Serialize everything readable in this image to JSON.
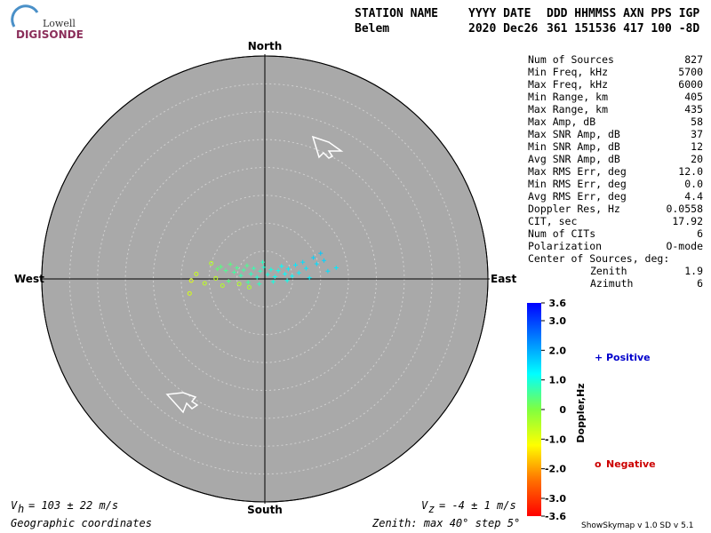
{
  "header": {
    "logo_top": "Lowell",
    "logo_bottom": "DIGISONDE",
    "labels": [
      "STATION NAME",
      "YYYY DATE",
      "DDD HHMMSS AXN PPS IGP"
    ],
    "values": [
      "Belem",
      "2020 Dec26",
      "361 151536 417 100 -8D"
    ]
  },
  "stats": {
    "rows": [
      [
        "Num of Sources",
        "827"
      ],
      [
        "Min Freq, kHz",
        "5700"
      ],
      [
        "Max Freq, kHz",
        "6000"
      ],
      [
        "Min Range, km",
        "405"
      ],
      [
        "Max Range, km",
        "435"
      ],
      [
        "Max Amp, dB",
        "58"
      ],
      [
        "Max SNR Amp, dB",
        "37"
      ],
      [
        "Min SNR Amp, dB",
        "12"
      ],
      [
        "Avg SNR Amp, dB",
        "20"
      ],
      [
        "Max RMS Err, deg",
        "12.0"
      ],
      [
        "Min RMS Err, deg",
        "0.0"
      ],
      [
        "Avg RMS Err, deg",
        "4.4"
      ],
      [
        "Doppler Res, Hz",
        "0.0558"
      ],
      [
        "CIT, sec",
        "17.92"
      ],
      [
        "Num of CITs",
        "6"
      ],
      [
        "Polarization",
        "O-mode"
      ]
    ],
    "center_title": "Center of Sources, deg:",
    "center_rows": [
      [
        "Zenith",
        "1.9"
      ],
      [
        "Azimuth",
        "6"
      ]
    ]
  },
  "chart_data": {
    "type": "scatter",
    "directions": {
      "north": "North",
      "south": "South",
      "west": "West",
      "east": "East"
    },
    "xlim": [
      -40,
      40
    ],
    "ylim": [
      -40,
      40
    ],
    "rings": [
      5,
      10,
      15,
      20,
      25,
      30,
      35,
      40
    ],
    "series": [
      {
        "name": "Positive",
        "color": "#0000cc",
        "marker": "+",
        "x": [
          -8.5,
          -7.9,
          -7.0,
          -6.2,
          -5.5,
          -5.0,
          -4.3,
          -3.8,
          -3.2,
          -2.5,
          -2.0,
          -1.4,
          -0.8,
          -0.2,
          0.5,
          1.1,
          1.8,
          2.4,
          3.0,
          3.6,
          4.2,
          4.9,
          5.5,
          6.1,
          6.8,
          7.4,
          8.0,
          8.7,
          9.3,
          10.0,
          10.6,
          11.3,
          12.8,
          -3.0,
          -1.0,
          1.5,
          4.0,
          -6.5,
          -0.4
        ],
        "y": [
          1.8,
          2.2,
          1.5,
          2.6,
          1.2,
          2.0,
          0.6,
          1.6,
          2.4,
          0.9,
          1.9,
          0.3,
          1.4,
          2.1,
          0.8,
          1.7,
          0.4,
          1.5,
          2.3,
          0.9,
          1.8,
          0.5,
          2.5,
          1.1,
          3.0,
          1.9,
          0.2,
          3.8,
          2.7,
          4.6,
          3.3,
          1.4,
          2.0,
          -0.6,
          -0.9,
          -0.5,
          -0.3,
          -0.4,
          3.0
        ],
        "doppler": [
          0.3,
          0.4,
          0.5,
          0.4,
          0.6,
          0.5,
          0.7,
          0.6,
          0.5,
          0.8,
          0.7,
          0.9,
          0.8,
          0.9,
          1.0,
          1.0,
          1.1,
          1.1,
          1.2,
          1.2,
          1.3,
          1.2,
          1.4,
          1.3,
          1.5,
          1.4,
          1.3,
          1.6,
          1.5,
          1.7,
          1.6,
          1.5,
          1.4,
          0.6,
          0.8,
          1.0,
          1.1,
          0.4,
          0.8
        ]
      },
      {
        "name": "Negative",
        "color": "#cc0000",
        "marker": "o",
        "x": [
          -13.5,
          -13.2,
          -12.3,
          -10.8,
          -9.6,
          -8.8,
          -7.6,
          -2.8,
          -4.6
        ],
        "y": [
          -2.6,
          -0.3,
          0.9,
          -0.8,
          2.8,
          0.1,
          -1.2,
          -1.5,
          -0.9
        ],
        "doppler": [
          -0.8,
          -0.9,
          -0.7,
          -0.6,
          -0.5,
          -0.6,
          -0.5,
          -0.4,
          -0.5
        ]
      }
    ],
    "colorbar": {
      "label": "Doppler,Hz",
      "lim": [
        -3.6,
        3.6
      ],
      "colormap": [
        "#ff0000",
        "#ff7000",
        "#ffff00",
        "#80ff40",
        "#00ffff",
        "#0080ff",
        "#0000ff"
      ],
      "ticks": [
        3.6,
        {
          "value": 3.0,
          "label": "3.0"
        },
        {
          "value": 2.0,
          "label": "2.0"
        },
        {
          "value": 1.0,
          "label": "1.0"
        },
        0,
        {
          "value": -1.0,
          "label": "-1.0"
        },
        {
          "value": -2.0,
          "label": "-2.0"
        },
        {
          "value": -3.0,
          "label": "-3.0"
        },
        -3.6
      ]
    }
  },
  "footer": {
    "vh": {
      "symbol": "V",
      "subscript": "h",
      "text": "= 103 ± 22 m/s"
    },
    "vz": {
      "symbol": "V",
      "subscript": "z",
      "text": "= -4 ± 1 m/s"
    },
    "coordinates": "Geographic coordinates",
    "zenith": "Zenith: max 40°  step 5°",
    "version": "ShowSkymap v 1.0  SD v 5.1"
  }
}
